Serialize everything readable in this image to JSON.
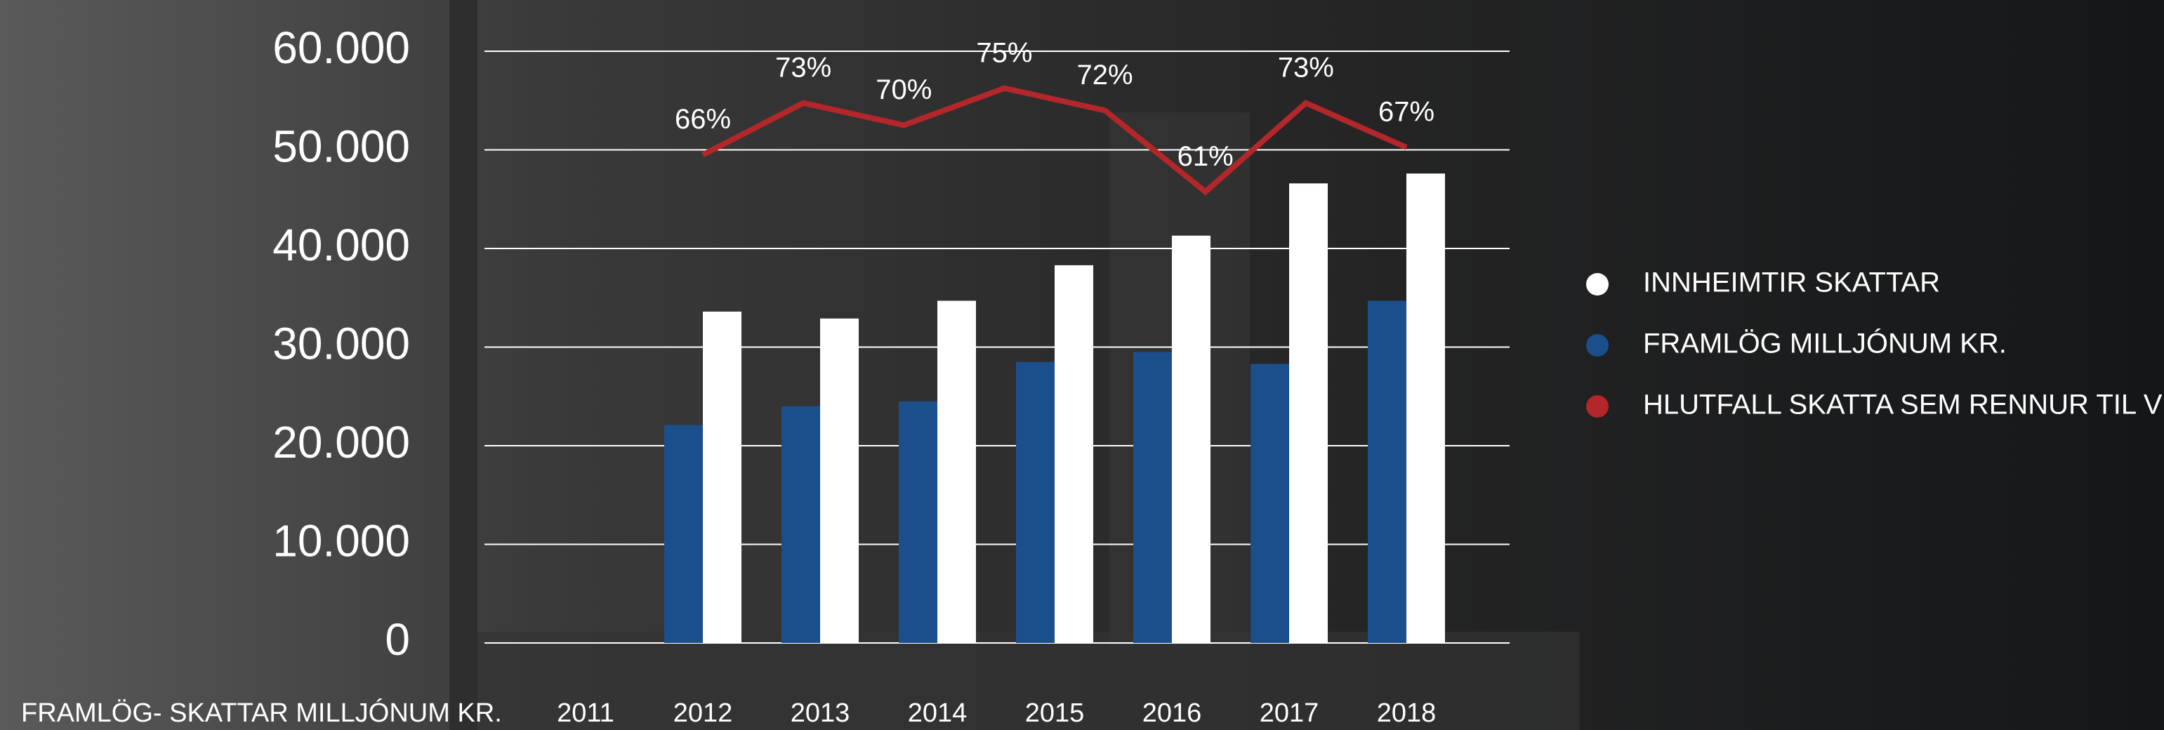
{
  "chart_data": {
    "type": "bar",
    "y_label": "FRAMLÖG- SKATTAR MILLJÓNUM KR.",
    "categories": [
      "2011",
      "2012",
      "2013",
      "2014",
      "2015",
      "2016",
      "2017",
      "2018"
    ],
    "series": [
      {
        "name": "INNHEIMTIR SKATTAR",
        "color": "#ffffff",
        "values": [
          null,
          33600,
          32900,
          34700,
          38300,
          41300,
          46600,
          47600
        ]
      },
      {
        "name": "FRAMLÖG MILLJÓNUM KR.",
        "color": "#1a4f8c",
        "values": [
          null,
          22100,
          24000,
          24500,
          28500,
          29500,
          28300,
          34700
        ]
      },
      {
        "name": "HLUTFALL SKATTA SEM RENNUR TIL VEGAGERÐAR",
        "color": "#b3262a",
        "type": "line",
        "axis": "y2",
        "values": [
          66,
          73,
          70,
          75,
          72,
          61,
          73,
          67
        ],
        "value_labels": [
          "66%",
          "73%",
          "70%",
          "75%",
          "72%",
          "61%",
          "73%",
          "67%"
        ]
      }
    ],
    "ylim": [
      0,
      60000
    ],
    "yticks": [
      0,
      {
        "value": 10000,
        "label": "10.000"
      },
      {
        "value": 20000,
        "label": "20.000"
      },
      {
        "value": 30000,
        "label": "30.000"
      },
      {
        "value": 40000,
        "label": "40.000"
      },
      {
        "value": 50000,
        "label": "50.000"
      },
      {
        "value": 60000,
        "label": "60.000"
      }
    ],
    "y2lim": [
      0,
      80
    ],
    "grid": true,
    "legend": "right"
  }
}
